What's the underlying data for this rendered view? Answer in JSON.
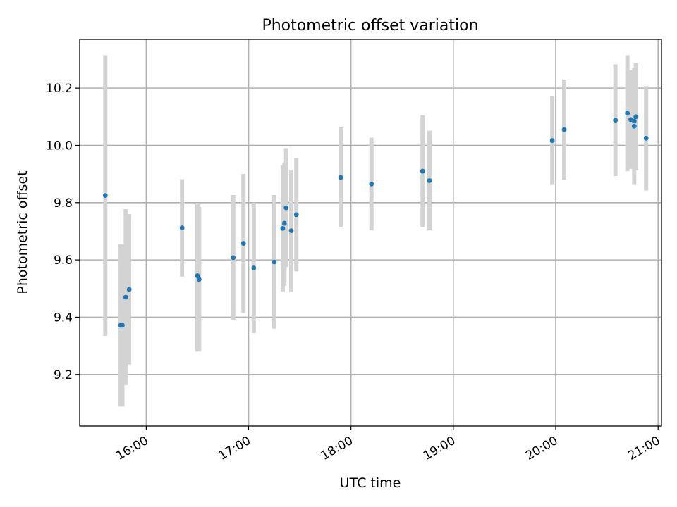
{
  "chart_data": {
    "type": "scatter",
    "title": "Photometric offset variation",
    "xlabel": "UTC time",
    "ylabel": "Photometric offset",
    "x_ticks": [
      "16:00",
      "17:00",
      "18:00",
      "19:00",
      "20:00",
      "21:00"
    ],
    "y_ticks": [
      "9.2",
      "9.4",
      "9.6",
      "9.8",
      "10.0",
      "10.2"
    ],
    "xlim": [
      "15:21",
      "21:02"
    ],
    "ylim": [
      9.02,
      10.37
    ],
    "grid": true,
    "series": [
      {
        "color": "#1f77b4",
        "errorbar_color": "#d3d3d3",
        "points": [
          {
            "x": "15:36",
            "y": 9.825,
            "ylo": 9.335,
            "yhi": 10.315
          },
          {
            "x": "15:45",
            "y": 9.372,
            "ylo": 9.088,
            "yhi": 9.657
          },
          {
            "x": "15:46",
            "y": 9.372,
            "ylo": 9.088,
            "yhi": 9.657
          },
          {
            "x": "15:48",
            "y": 9.47,
            "ylo": 9.163,
            "yhi": 9.777
          },
          {
            "x": "15:50",
            "y": 9.497,
            "ylo": 9.235,
            "yhi": 9.76
          },
          {
            "x": "16:21",
            "y": 9.712,
            "ylo": 9.542,
            "yhi": 9.882
          },
          {
            "x": "16:30",
            "y": 9.545,
            "ylo": 9.28,
            "yhi": 9.795
          },
          {
            "x": "16:31",
            "y": 9.532,
            "ylo": 9.28,
            "yhi": 9.785
          },
          {
            "x": "16:51",
            "y": 9.608,
            "ylo": 9.39,
            "yhi": 9.827
          },
          {
            "x": "16:57",
            "y": 9.658,
            "ylo": 9.415,
            "yhi": 9.9
          },
          {
            "x": "17:03",
            "y": 9.572,
            "ylo": 9.345,
            "yhi": 9.8
          },
          {
            "x": "17:15",
            "y": 9.593,
            "ylo": 9.36,
            "yhi": 9.827
          },
          {
            "x": "17:20",
            "y": 9.71,
            "ylo": 9.49,
            "yhi": 9.93
          },
          {
            "x": "17:21",
            "y": 9.728,
            "ylo": 9.51,
            "yhi": 9.94
          },
          {
            "x": "17:22",
            "y": 9.782,
            "ylo": 9.575,
            "yhi": 9.99
          },
          {
            "x": "17:25",
            "y": 9.702,
            "ylo": 9.49,
            "yhi": 9.912
          },
          {
            "x": "17:28",
            "y": 9.758,
            "ylo": 9.56,
            "yhi": 9.957
          },
          {
            "x": "17:54",
            "y": 9.888,
            "ylo": 9.713,
            "yhi": 10.063
          },
          {
            "x": "18:12",
            "y": 9.865,
            "ylo": 9.703,
            "yhi": 10.027
          },
          {
            "x": "18:42",
            "y": 9.91,
            "ylo": 9.715,
            "yhi": 10.105
          },
          {
            "x": "18:46",
            "y": 9.877,
            "ylo": 9.703,
            "yhi": 10.051
          },
          {
            "x": "19:58",
            "y": 10.017,
            "ylo": 9.862,
            "yhi": 10.172
          },
          {
            "x": "20:05",
            "y": 10.055,
            "ylo": 9.88,
            "yhi": 10.23
          },
          {
            "x": "20:35",
            "y": 10.088,
            "ylo": 9.893,
            "yhi": 10.283
          },
          {
            "x": "20:42",
            "y": 10.112,
            "ylo": 9.91,
            "yhi": 10.315
          },
          {
            "x": "20:44",
            "y": 10.09,
            "ylo": 9.918,
            "yhi": 10.262
          },
          {
            "x": "20:46",
            "y": 10.085,
            "ylo": 9.923,
            "yhi": 10.247
          },
          {
            "x": "20:46",
            "y": 10.067,
            "ylo": 9.862,
            "yhi": 10.272
          },
          {
            "x": "20:47",
            "y": 10.1,
            "ylo": 9.913,
            "yhi": 10.287
          },
          {
            "x": "20:53",
            "y": 10.025,
            "ylo": 9.843,
            "yhi": 10.207
          }
        ]
      }
    ]
  }
}
